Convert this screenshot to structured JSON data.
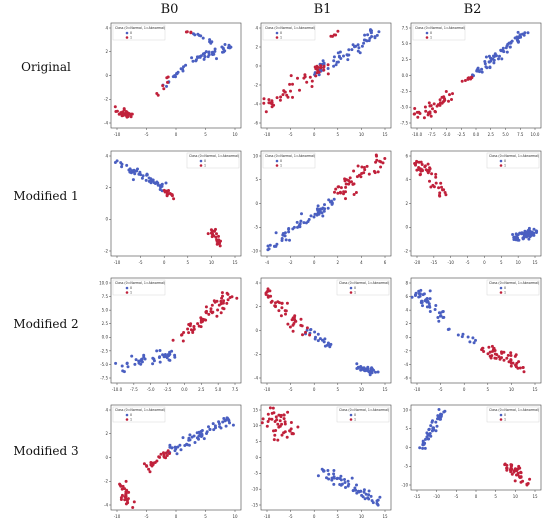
{
  "column_headers": [
    "B0",
    "B1",
    "B2"
  ],
  "row_headers": [
    "Original",
    "Modified 1",
    "Modified 2",
    "Modified 3"
  ],
  "colors": {
    "class0": "#4a5fc1",
    "class1": "#c0213b",
    "axis": "#444444"
  },
  "chart_data": [
    {
      "type": "scatter",
      "panel": "Original-B0",
      "legend": {
        "title": "Class (0=Normal, 1=Abnormal)",
        "entries": [
          "0",
          "1"
        ],
        "placement": "top-left"
      },
      "xticks": [
        "-10",
        "-5",
        "0",
        "5",
        "10"
      ],
      "yticks": [
        "-4",
        "-2",
        "0",
        "2",
        "4"
      ],
      "xlim": [
        -13,
        13
      ],
      "ylim": [
        -5,
        5
      ],
      "series": [
        {
          "name": "0",
          "clusters": [
            {
              "x0": -2,
              "y0": -1,
              "x1": 2,
              "y1": 1,
              "n": 18,
              "spread": 0.35
            },
            {
              "x0": 3,
              "y0": 1.5,
              "x1": 11,
              "y1": 2.7,
              "n": 40,
              "spread": 0.5
            },
            {
              "x0": 4,
              "y0": 4,
              "x1": 7,
              "y1": 3,
              "n": 10,
              "spread": 0.3
            }
          ]
        },
        {
          "name": "1",
          "clusters": [
            {
              "x0": -12,
              "y0": -3.3,
              "x1": -9,
              "y1": -3.9,
              "n": 30,
              "spread": 0.45
            },
            {
              "x0": -4,
              "y0": -2,
              "x1": -1,
              "y1": 0,
              "n": 7,
              "spread": 0.3
            },
            {
              "x0": 2,
              "y0": 4,
              "x1": 3,
              "y1": 4.2,
              "n": 4,
              "spread": 0.2
            }
          ]
        }
      ]
    },
    {
      "type": "scatter",
      "panel": "Original-B1",
      "legend": {
        "title": "Class (0=Normal, 1=Abnormal)",
        "entries": [
          "0",
          "1"
        ],
        "placement": "top-left"
      },
      "xticks": [
        "-10",
        "-5",
        "0",
        "5",
        "10",
        "15"
      ],
      "yticks": [
        "-6",
        "-4",
        "-2",
        "0",
        "2",
        "4"
      ],
      "xlim": [
        -12,
        18
      ],
      "ylim": [
        -7,
        5
      ],
      "series": [
        {
          "name": "0",
          "clusters": [
            {
              "x0": 0,
              "y0": -1,
              "x1": 15,
              "y1": 4,
              "n": 60,
              "spread": 0.7
            }
          ]
        },
        {
          "name": "1",
          "clusters": [
            {
              "x0": -11,
              "y0": -4.5,
              "x1": 2,
              "y1": 0,
              "n": 50,
              "spread": 0.9
            },
            {
              "x0": 4,
              "y0": 3.5,
              "x1": 6,
              "y1": 4,
              "n": 5,
              "spread": 0.3
            }
          ]
        }
      ]
    },
    {
      "type": "scatter",
      "panel": "Original-B2",
      "legend": {
        "title": "Class (0=Normal, 1=Abnormal)",
        "entries": [
          "0",
          "1"
        ],
        "placement": "top-left"
      },
      "xticks": [
        "-10.0",
        "-7.5",
        "-5.0",
        "-2.5",
        "0.0",
        "2.5",
        "5.0",
        "7.5",
        "10.0"
      ],
      "yticks": [
        "-7.5",
        "-5.0",
        "-2.5",
        "0.0",
        "2.5",
        "5.0",
        "7.5"
      ],
      "xlim": [
        -11,
        12
      ],
      "ylim": [
        -9,
        9
      ],
      "series": [
        {
          "name": "0",
          "clusters": [
            {
              "x0": 0,
              "y0": 0,
              "x1": 10,
              "y1": 8,
              "n": 70,
              "spread": 0.5
            }
          ]
        },
        {
          "name": "1",
          "clusters": [
            {
              "x0": -10,
              "y0": -7,
              "x1": -4,
              "y1": -3.5,
              "n": 40,
              "spread": 0.8
            },
            {
              "x0": -1.5,
              "y0": -1,
              "x1": 0,
              "y1": 0,
              "n": 8,
              "spread": 0.3
            }
          ]
        }
      ]
    },
    {
      "type": "scatter",
      "panel": "Modified1-B0",
      "legend": {
        "title": "Class (0=Normal, 1=Abnormal)",
        "entries": [
          "0",
          "1"
        ],
        "placement": "top-right"
      },
      "xticks": [
        "-10",
        "-5",
        "0",
        "5",
        "10",
        "15"
      ],
      "yticks": [
        "-2",
        "0",
        "2",
        "4"
      ],
      "xlim": [
        -13,
        18
      ],
      "ylim": [
        -4,
        6
      ],
      "series": [
        {
          "name": "0",
          "clusters": [
            {
              "x0": -12,
              "y0": 5,
              "x1": 0,
              "y1": 2.5,
              "n": 50,
              "spread": 0.45
            }
          ]
        },
        {
          "name": "1",
          "clusters": [
            {
              "x0": 0,
              "y0": 2.2,
              "x1": 2.5,
              "y1": 1.2,
              "n": 15,
              "spread": 0.3
            },
            {
              "x0": 11,
              "y0": -1.5,
              "x1": 13.5,
              "y1": -3,
              "n": 25,
              "spread": 0.5
            }
          ]
        }
      ]
    },
    {
      "type": "scatter",
      "panel": "Modified1-B1",
      "legend": {
        "title": "Class (0=Normal, 1=Abnormal)",
        "entries": [
          "0",
          "1"
        ],
        "placement": "top-left"
      },
      "xticks": [
        "-4",
        "-2",
        "0",
        "2",
        "4",
        "6"
      ],
      "yticks": [
        "-10",
        "-5",
        "0",
        "5",
        "10"
      ],
      "xlim": [
        -5,
        7
      ],
      "ylim": [
        -12,
        14
      ],
      "series": [
        {
          "name": "0",
          "clusters": [
            {
              "x0": -4.5,
              "y0": -10,
              "x1": 2,
              "y1": 2,
              "n": 65,
              "spread": 0.6
            }
          ]
        },
        {
          "name": "1",
          "clusters": [
            {
              "x0": 2,
              "y0": 3,
              "x1": 6.5,
              "y1": 13,
              "n": 50,
              "spread": 0.8
            }
          ]
        }
      ]
    },
    {
      "type": "scatter",
      "panel": "Modified1-B2",
      "legend": {
        "title": "Class (0=Normal, 1=Abnormal)",
        "entries": [
          "0",
          "1"
        ],
        "placement": "top-right"
      },
      "xticks": [
        "-20",
        "-15",
        "-10",
        "-5",
        "0",
        "5",
        "10",
        "15"
      ],
      "yticks": [
        "-2",
        "0",
        "2",
        "4",
        "6"
      ],
      "xlim": [
        -22,
        18
      ],
      "ylim": [
        -4,
        8
      ],
      "series": [
        {
          "name": "0",
          "clusters": [
            {
              "x0": 9,
              "y0": -2,
              "x1": 16,
              "y1": -1.2,
              "n": 60,
              "spread": 0.6
            }
          ]
        },
        {
          "name": "1",
          "clusters": [
            {
              "x0": -20,
              "y0": 6.2,
              "x1": -16,
              "y1": 5.5,
              "n": 30,
              "spread": 0.8
            },
            {
              "x0": -15,
              "y0": 4.5,
              "x1": -12,
              "y1": 3,
              "n": 15,
              "spread": 0.6
            }
          ]
        }
      ]
    },
    {
      "type": "scatter",
      "panel": "Modified2-B0",
      "legend": {
        "title": "Class (0=Normal, 1=Abnormal)",
        "entries": [
          "0",
          "1"
        ],
        "placement": "top-left"
      },
      "xticks": [
        "-10.0",
        "-7.5",
        "-5.0",
        "-2.5",
        "0.0",
        "2.5",
        "5.0",
        "7.5"
      ],
      "yticks": [
        "-7.5",
        "-5.0",
        "-2.5",
        "0.0",
        "2.5",
        "5.0",
        "7.5",
        "10.0"
      ],
      "xlim": [
        -11,
        9
      ],
      "ylim": [
        -9,
        11
      ],
      "series": [
        {
          "name": "0",
          "clusters": [
            {
              "x0": -10,
              "y0": -6,
              "x1": -1,
              "y1": -3,
              "n": 45,
              "spread": 0.7
            }
          ]
        },
        {
          "name": "1",
          "clusters": [
            {
              "x0": -1,
              "y0": -1,
              "x1": 8,
              "y1": 8,
              "n": 60,
              "spread": 0.8
            }
          ]
        }
      ]
    },
    {
      "type": "scatter",
      "panel": "Modified2-B1",
      "legend": {
        "title": "Class (0=Normal, 1=Abnormal)",
        "entries": [
          "0",
          "1"
        ],
        "placement": "top-right"
      },
      "xticks": [
        "-10",
        "-5",
        "0",
        "5",
        "10",
        "15"
      ],
      "yticks": [
        "-4",
        "-2",
        "0",
        "2",
        "4"
      ],
      "xlim": [
        -13,
        18
      ],
      "ylim": [
        -5,
        5
      ],
      "series": [
        {
          "name": "0",
          "clusters": [
            {
              "x0": -2,
              "y0": 0,
              "x1": 4,
              "y1": -1.5,
              "n": 20,
              "spread": 0.4
            },
            {
              "x0": 10,
              "y0": -3.5,
              "x1": 14,
              "y1": -4,
              "n": 30,
              "spread": 0.5
            }
          ]
        },
        {
          "name": "1",
          "clusters": [
            {
              "x0": -12,
              "y0": 3.8,
              "x1": -2,
              "y1": -0.5,
              "n": 45,
              "spread": 0.7
            }
          ]
        }
      ]
    },
    {
      "type": "scatter",
      "panel": "Modified2-B2",
      "legend": {
        "title": "Class (0=Normal, 1=Abnormal)",
        "entries": [
          "0",
          "1"
        ],
        "placement": "top-right"
      },
      "xticks": [
        "-10",
        "-5",
        "0",
        "5",
        "10",
        "15"
      ],
      "yticks": [
        "-6",
        "-4",
        "-2",
        "0",
        "2",
        "4",
        "6",
        "8"
      ],
      "xlim": [
        -13,
        17
      ],
      "ylim": [
        -7,
        9
      ],
      "series": [
        {
          "name": "0",
          "clusters": [
            {
              "x0": -12,
              "y0": 7,
              "x1": -6,
              "y1": 3,
              "n": 45,
              "spread": 0.7
            },
            {
              "x0": -5,
              "y0": 1.5,
              "x1": 2,
              "y1": -1,
              "n": 10,
              "spread": 0.4
            }
          ]
        },
        {
          "name": "1",
          "clusters": [
            {
              "x0": 4,
              "y0": -2,
              "x1": 13,
              "y1": -4.5,
              "n": 50,
              "spread": 0.9
            }
          ]
        }
      ]
    },
    {
      "type": "scatter",
      "panel": "Modified3-B0",
      "legend": {
        "title": "Class (0=Normal, 1=Abnormal)",
        "entries": [
          "0",
          "1"
        ],
        "placement": "top-left"
      },
      "xticks": [
        "-10",
        "-5",
        "0",
        "5",
        "10"
      ],
      "yticks": [
        "-4",
        "-2",
        "0",
        "2",
        "4"
      ],
      "xlim": [
        -14,
        13
      ],
      "ylim": [
        -5,
        5
      ],
      "series": [
        {
          "name": "0",
          "clusters": [
            {
              "x0": -2,
              "y0": 0.5,
              "x1": 11,
              "y1": 3.8,
              "n": 65,
              "spread": 0.6
            }
          ]
        },
        {
          "name": "1",
          "clusters": [
            {
              "x0": -7,
              "y0": -1,
              "x1": -2,
              "y1": 0.5,
              "n": 25,
              "spread": 0.5
            },
            {
              "x0": -12,
              "y0": -2.5,
              "x1": -10,
              "y1": -4.5,
              "n": 25,
              "spread": 0.5
            }
          ]
        }
      ]
    },
    {
      "type": "scatter",
      "panel": "Modified3-B1",
      "legend": {
        "title": "Class (0=Normal, 1=Abnormal)",
        "entries": [
          "0",
          "1"
        ],
        "placement": "top-right"
      },
      "xticks": [
        "-10",
        "-5",
        "0",
        "5",
        "10",
        "15"
      ],
      "yticks": [
        "-15",
        "-10",
        "-5",
        "0",
        "5",
        "10",
        "15"
      ],
      "xlim": [
        -13,
        18
      ],
      "ylim": [
        -17,
        17
      ],
      "series": [
        {
          "name": "0",
          "clusters": [
            {
              "x0": 2,
              "y0": -4,
              "x1": 15,
              "y1": -15,
              "n": 60,
              "spread": 0.7
            }
          ]
        },
        {
          "name": "1",
          "clusters": [
            {
              "x0": -11,
              "y0": 14,
              "x1": -6,
              "y1": 8,
              "n": 45,
              "spread": 1.2
            }
          ]
        }
      ]
    },
    {
      "type": "scatter",
      "panel": "Modified3-B2",
      "legend": {
        "title": "Class (0=Normal, 1=Abnormal)",
        "entries": [
          "0",
          "1"
        ],
        "placement": "top-right"
      },
      "xticks": [
        "-15",
        "-10",
        "-5",
        "0",
        "5",
        "10",
        "15"
      ],
      "yticks": [
        "-10",
        "-5",
        "0",
        "5",
        "10"
      ],
      "xlim": [
        -17,
        17
      ],
      "ylim": [
        -12,
        12
      ],
      "series": [
        {
          "name": "0",
          "clusters": [
            {
              "x0": -14,
              "y0": 0,
              "x1": -9,
              "y1": 10,
              "n": 45,
              "spread": 0.5
            }
          ]
        },
        {
          "name": "1",
          "clusters": [
            {
              "x0": 9,
              "y0": -5,
              "x1": 13,
              "y1": -10,
              "n": 40,
              "spread": 1.0
            }
          ]
        }
      ]
    }
  ]
}
